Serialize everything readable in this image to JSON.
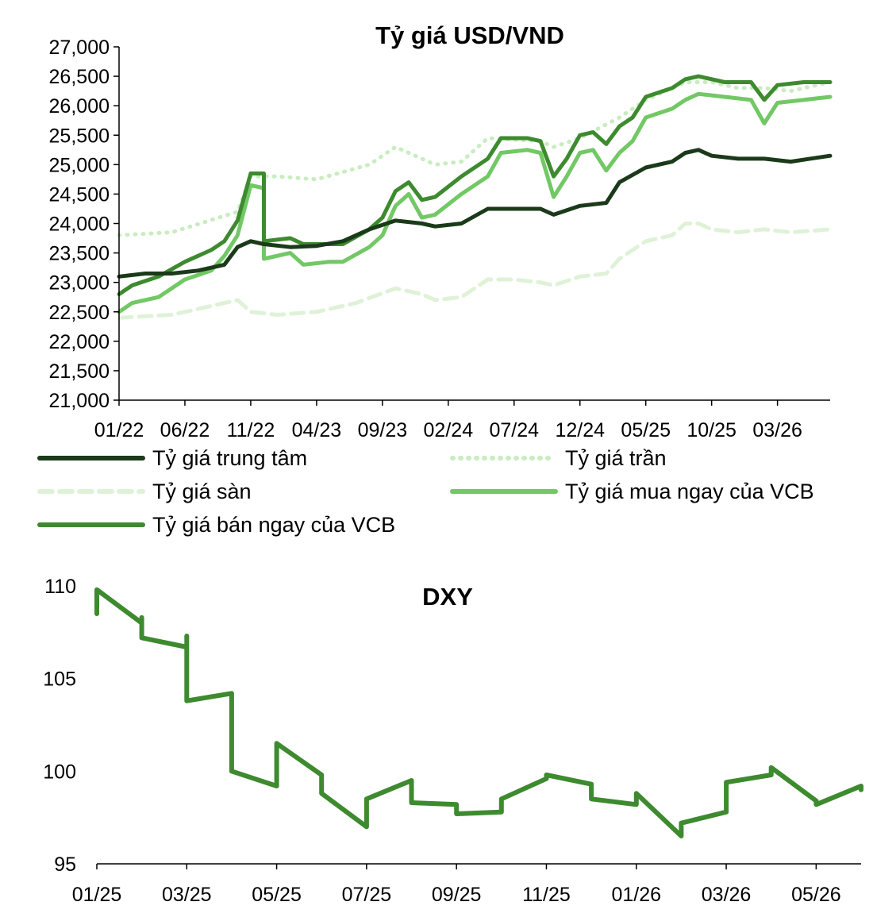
{
  "chart_data": [
    {
      "type": "line",
      "title": "Tỷ giá USD/VND",
      "xlabel": "",
      "ylabel": "",
      "x_ticks": [
        "01/22",
        "06/22",
        "11/22",
        "04/23",
        "09/23",
        "02/24",
        "07/24",
        "12/24",
        "05/25",
        "10/25",
        "03/26"
      ],
      "y_ticks": [
        "27,000",
        "26,500",
        "26,000",
        "25,500",
        "25,000",
        "24,500",
        "24,000",
        "23,500",
        "23,000",
        "22,500",
        "22,000",
        "21,500",
        "21,000"
      ],
      "ylim": [
        21000,
        27000
      ],
      "xlim": [
        "01/22",
        "07/26"
      ],
      "grid": false,
      "legend_position": "bottom",
      "series": [
        {
          "name": "Tỷ giá trung tâm",
          "color": "#1b3a1a",
          "style": "solid",
          "points": [
            [
              "01/22",
              23100
            ],
            [
              "03/22",
              23150
            ],
            [
              "05/22",
              23150
            ],
            [
              "07/22",
              23200
            ],
            [
              "09/22",
              23300
            ],
            [
              "10/22",
              23600
            ],
            [
              "11/22",
              23700
            ],
            [
              "12/22",
              23650
            ],
            [
              "02/23",
              23600
            ],
            [
              "04/23",
              23620
            ],
            [
              "06/23",
              23700
            ],
            [
              "08/23",
              23900
            ],
            [
              "10/23",
              24050
            ],
            [
              "12/23",
              24000
            ],
            [
              "01/24",
              23950
            ],
            [
              "03/24",
              24000
            ],
            [
              "05/24",
              24250
            ],
            [
              "07/24",
              24250
            ],
            [
              "09/24",
              24250
            ],
            [
              "10/24",
              24150
            ],
            [
              "12/24",
              24300
            ],
            [
              "02/25",
              24350
            ],
            [
              "03/25",
              24700
            ],
            [
              "05/25",
              24950
            ],
            [
              "07/25",
              25050
            ],
            [
              "08/25",
              25200
            ],
            [
              "09/25",
              25250
            ],
            [
              "10/25",
              25150
            ],
            [
              "12/25",
              25100
            ],
            [
              "02/26",
              25100
            ],
            [
              "04/26",
              25050
            ],
            [
              "07/26",
              25150
            ]
          ]
        },
        {
          "name": "Tỷ giá trần",
          "color": "#c9ecc0",
          "style": "dotted",
          "points": [
            [
              "01/22",
              23800
            ],
            [
              "05/22",
              23850
            ],
            [
              "10/22",
              24200
            ],
            [
              "11/22",
              24800
            ],
            [
              "01/23",
              24800
            ],
            [
              "04/23",
              24750
            ],
            [
              "08/23",
              25000
            ],
            [
              "10/23",
              25300
            ],
            [
              "01/24",
              25000
            ],
            [
              "03/24",
              25050
            ],
            [
              "05/24",
              25450
            ],
            [
              "09/24",
              25400
            ],
            [
              "10/24",
              25300
            ],
            [
              "12/24",
              25450
            ],
            [
              "03/25",
              25800
            ],
            [
              "05/25",
              26100
            ],
            [
              "08/25",
              26400
            ],
            [
              "10/25",
              26400
            ],
            [
              "12/25",
              26300
            ],
            [
              "02/26",
              26300
            ],
            [
              "04/26",
              26250
            ],
            [
              "07/26",
              26400
            ]
          ]
        },
        {
          "name": "Tỷ giá sàn",
          "color": "#dff2d8",
          "style": "dashed",
          "points": [
            [
              "01/22",
              22400
            ],
            [
              "05/22",
              22450
            ],
            [
              "10/22",
              22700
            ],
            [
              "11/22",
              22500
            ],
            [
              "01/23",
              22450
            ],
            [
              "04/23",
              22500
            ],
            [
              "07/23",
              22650
            ],
            [
              "10/23",
              22900
            ],
            [
              "12/23",
              22800
            ],
            [
              "01/24",
              22700
            ],
            [
              "03/24",
              22750
            ],
            [
              "05/24",
              23050
            ],
            [
              "07/24",
              23050
            ],
            [
              "09/24",
              23000
            ],
            [
              "10/24",
              22950
            ],
            [
              "12/24",
              23100
            ],
            [
              "02/25",
              23150
            ],
            [
              "03/25",
              23400
            ],
            [
              "05/25",
              23700
            ],
            [
              "07/25",
              23800
            ],
            [
              "08/25",
              24000
            ],
            [
              "09/25",
              24000
            ],
            [
              "10/25",
              23900
            ],
            [
              "12/25",
              23850
            ],
            [
              "02/26",
              23900
            ],
            [
              "04/26",
              23850
            ],
            [
              "07/26",
              23900
            ]
          ]
        },
        {
          "name": "Tỷ giá mua ngay của VCB",
          "color": "#72c865",
          "style": "solid",
          "points": [
            [
              "01/22",
              22500
            ],
            [
              "02/22",
              22650
            ],
            [
              "04/22",
              22750
            ],
            [
              "06/22",
              23050
            ],
            [
              "08/22",
              23200
            ],
            [
              "09/22",
              23450
            ],
            [
              "10/22",
              23800
            ],
            [
              "11/22",
              24650
            ],
            [
              "12/22",
              24600
            ],
            [
              "12/22",
              23400
            ],
            [
              "02/23",
              23500
            ],
            [
              "03/23",
              23300
            ],
            [
              "05/23",
              23350
            ],
            [
              "06/23",
              23350
            ],
            [
              "08/23",
              23600
            ],
            [
              "09/23",
              23800
            ],
            [
              "10/23",
              24300
            ],
            [
              "11/23",
              24500
            ],
            [
              "12/23",
              24100
            ],
            [
              "01/24",
              24150
            ],
            [
              "03/24",
              24500
            ],
            [
              "05/24",
              24800
            ],
            [
              "06/24",
              25200
            ],
            [
              "08/24",
              25250
            ],
            [
              "09/24",
              25200
            ],
            [
              "10/24",
              24450
            ],
            [
              "11/24",
              24800
            ],
            [
              "12/24",
              25200
            ],
            [
              "01/25",
              25250
            ],
            [
              "02/25",
              24900
            ],
            [
              "03/25",
              25200
            ],
            [
              "04/25",
              25400
            ],
            [
              "05/25",
              25800
            ],
            [
              "07/25",
              25950
            ],
            [
              "08/25",
              26100
            ],
            [
              "09/25",
              26200
            ],
            [
              "11/25",
              26150
            ],
            [
              "01/26",
              26100
            ],
            [
              "02/26",
              25700
            ],
            [
              "03/26",
              26050
            ],
            [
              "05/26",
              26100
            ],
            [
              "07/26",
              26150
            ]
          ]
        },
        {
          "name": "Tỷ giá bán ngay của VCB",
          "color": "#3d8a2f",
          "style": "solid",
          "points": [
            [
              "01/22",
              22800
            ],
            [
              "02/22",
              22950
            ],
            [
              "04/22",
              23100
            ],
            [
              "06/22",
              23350
            ],
            [
              "08/22",
              23550
            ],
            [
              "09/22",
              23700
            ],
            [
              "10/22",
              24050
            ],
            [
              "11/22",
              24850
            ],
            [
              "12/22",
              24850
            ],
            [
              "12/22",
              23700
            ],
            [
              "02/23",
              23750
            ],
            [
              "03/23",
              23650
            ],
            [
              "05/23",
              23650
            ],
            [
              "06/23",
              23650
            ],
            [
              "08/23",
              23900
            ],
            [
              "09/23",
              24100
            ],
            [
              "10/23",
              24550
            ],
            [
              "11/23",
              24700
            ],
            [
              "12/23",
              24400
            ],
            [
              "01/24",
              24450
            ],
            [
              "03/24",
              24800
            ],
            [
              "05/24",
              25100
            ],
            [
              "06/24",
              25450
            ],
            [
              "08/24",
              25450
            ],
            [
              "09/24",
              25400
            ],
            [
              "10/24",
              24800
            ],
            [
              "11/24",
              25100
            ],
            [
              "12/24",
              25500
            ],
            [
              "01/25",
              25550
            ],
            [
              "02/25",
              25350
            ],
            [
              "03/25",
              25650
            ],
            [
              "04/25",
              25800
            ],
            [
              "05/25",
              26150
            ],
            [
              "07/25",
              26300
            ],
            [
              "08/25",
              26450
            ],
            [
              "09/25",
              26500
            ],
            [
              "11/25",
              26400
            ],
            [
              "01/26",
              26400
            ],
            [
              "02/26",
              26100
            ],
            [
              "03/26",
              26350
            ],
            [
              "05/26",
              26400
            ],
            [
              "07/26",
              26400
            ]
          ]
        }
      ]
    },
    {
      "type": "line",
      "title": "DXY",
      "xlabel": "",
      "ylabel": "",
      "x_ticks": [
        "01/25",
        "03/25",
        "05/25",
        "07/25",
        "09/25",
        "11/25",
        "01/26",
        "03/26",
        "05/26"
      ],
      "y_ticks": [
        "110",
        "105",
        "100",
        "95"
      ],
      "ylim": [
        95,
        110
      ],
      "xlim": [
        "01/25",
        "06/26"
      ],
      "grid": false,
      "legend_position": "none",
      "series": [
        {
          "name": "",
          "color": "#3d8a2f",
          "style": "solid",
          "points": [
            [
              "01/25",
              109.3
            ],
            [
              "01/25",
              108.5
            ],
            [
              "01/25",
              109.8
            ],
            [
              "02/25",
              108.0
            ],
            [
              "02/25",
              108.3
            ],
            [
              "02/25",
              107.2
            ],
            [
              "03/25",
              106.7
            ],
            [
              "03/25",
              107.3
            ],
            [
              "03/25",
              104.0
            ],
            [
              "03/25",
              103.8
            ],
            [
              "04/25",
              104.2
            ],
            [
              "04/25",
              103.0
            ],
            [
              "04/25",
              100.0
            ],
            [
              "05/25",
              99.2
            ],
            [
              "05/25",
              100.3
            ],
            [
              "05/25",
              101.5
            ],
            [
              "06/25",
              99.8
            ],
            [
              "06/25",
              98.8
            ],
            [
              "07/25",
              97.0
            ],
            [
              "07/25",
              97.6
            ],
            [
              "07/25",
              98.5
            ],
            [
              "08/25",
              99.5
            ],
            [
              "08/25",
              98.3
            ],
            [
              "09/25",
              98.2
            ],
            [
              "09/25",
              97.7
            ],
            [
              "10/25",
              97.8
            ],
            [
              "10/25",
              98.5
            ],
            [
              "11/25",
              99.6
            ],
            [
              "11/25",
              99.8
            ],
            [
              "12/25",
              99.3
            ],
            [
              "12/25",
              98.5
            ],
            [
              "01/26",
              98.2
            ],
            [
              "01/26",
              98.8
            ],
            [
              "02/26",
              96.5
            ],
            [
              "02/26",
              97.2
            ],
            [
              "03/26",
              97.8
            ],
            [
              "03/26",
              99.4
            ],
            [
              "04/26",
              99.8
            ],
            [
              "04/26",
              100.2
            ],
            [
              "05/26",
              98.4
            ],
            [
              "05/26",
              98.2
            ],
            [
              "06/26",
              99.2
            ],
            [
              "06/26",
              99.0
            ]
          ]
        }
      ]
    }
  ]
}
